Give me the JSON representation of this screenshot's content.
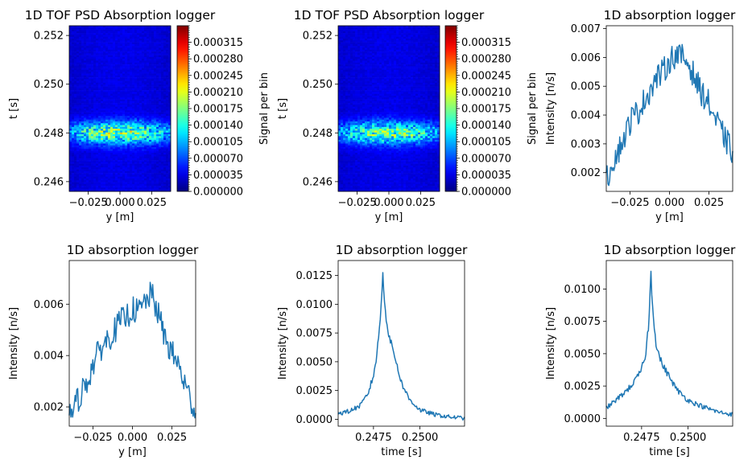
{
  "chart_data": [
    {
      "type": "heatmap",
      "title": "1D TOF PSD Absorption logger",
      "xlabel": "y [m]",
      "ylabel": "t [s]",
      "colorbar_label": "Signal per bin",
      "colormap": "jet",
      "xlim": [
        -0.04,
        0.04
      ],
      "ylim": [
        0.2456,
        0.2524
      ],
      "xticks": [
        -0.025,
        0.0,
        0.025
      ],
      "xtick_labels": [
        "−0.025",
        "0.000",
        "0.025"
      ],
      "yticks": [
        0.246,
        0.248,
        0.25,
        0.252
      ],
      "ytick_labels": [
        "0.246",
        "0.248",
        "0.250",
        "0.252"
      ],
      "colorbar_range": [
        0,
        0.00035
      ],
      "colorbar_ticks": [
        0,
        3.5e-05,
        7e-05,
        0.000105,
        0.00014,
        0.000175,
        0.00021,
        0.000245,
        0.00028,
        0.000315
      ],
      "colorbar_tick_labels": [
        "0.000000",
        "0.000035",
        "0.000070",
        "0.000105",
        "0.000140",
        "0.000175",
        "0.000210",
        "0.000245",
        "0.000280",
        "0.000315"
      ],
      "peak_t": 0.248,
      "peak_signal": 0.000175
    },
    {
      "type": "heatmap",
      "title": "1D TOF PSD Absorption logger",
      "xlabel": "y [m]",
      "ylabel": "t [s]",
      "colorbar_label": "Signal per bin",
      "colormap": "jet",
      "xlim": [
        -0.04,
        0.04
      ],
      "ylim": [
        0.2456,
        0.2524
      ],
      "xticks": [
        -0.025,
        0.0,
        0.025
      ],
      "xtick_labels": [
        "−0.025",
        "0.000",
        "0.025"
      ],
      "yticks": [
        0.246,
        0.248,
        0.25,
        0.252
      ],
      "ytick_labels": [
        "0.246",
        "0.248",
        "0.250",
        "0.252"
      ],
      "colorbar_range": [
        0,
        0.00035
      ],
      "colorbar_ticks": [
        0,
        3.5e-05,
        7e-05,
        0.000105,
        0.00014,
        0.000175,
        0.00021,
        0.000245,
        0.00028,
        0.000315
      ],
      "colorbar_tick_labels": [
        "0.000000",
        "0.000035",
        "0.000070",
        "0.000105",
        "0.000140",
        "0.000175",
        "0.000210",
        "0.000245",
        "0.000280",
        "0.000315"
      ],
      "peak_t": 0.248,
      "peak_signal": 0.000165
    },
    {
      "type": "line",
      "title": "1D absorption logger",
      "xlabel": "y [m]",
      "ylabel": "Intensity [n/s]",
      "xlim": [
        -0.04,
        0.04
      ],
      "ylim": [
        0.00135,
        0.0071
      ],
      "xticks": [
        -0.025,
        0.0,
        0.025
      ],
      "xtick_labels": [
        "−0.025",
        "0.000",
        "0.025"
      ],
      "yticks": [
        0.002,
        0.003,
        0.004,
        0.005,
        0.006,
        0.007
      ],
      "ytick_labels": [
        "0.002",
        "0.003",
        "0.004",
        "0.005",
        "0.006",
        "0.007"
      ],
      "color": "#1f77b4",
      "x": [
        -0.04,
        -0.036,
        -0.032,
        -0.028,
        -0.024,
        -0.02,
        -0.016,
        -0.012,
        -0.008,
        -0.004,
        0.0,
        0.004,
        0.008,
        0.012,
        0.016,
        0.02,
        0.024,
        0.028,
        0.032,
        0.036,
        0.04
      ],
      "y": [
        0.0017,
        0.0024,
        0.0028,
        0.0033,
        0.0039,
        0.0041,
        0.0045,
        0.0049,
        0.0053,
        0.0055,
        0.0059,
        0.0061,
        0.006,
        0.0058,
        0.0053,
        0.0048,
        0.0045,
        0.004,
        0.0035,
        0.0031,
        0.0027
      ]
    },
    {
      "type": "line",
      "title": "1D absorption logger",
      "xlabel": "y [m]",
      "ylabel": "Intensity [n/s]",
      "xlim": [
        -0.04,
        0.04
      ],
      "ylim": [
        0.00125,
        0.0077
      ],
      "xticks": [
        -0.025,
        0.0,
        0.025
      ],
      "xtick_labels": [
        "−0.025",
        "0.000",
        "0.025"
      ],
      "yticks": [
        0.002,
        0.004,
        0.006
      ],
      "ytick_labels": [
        "0.002",
        "0.004",
        "0.006"
      ],
      "color": "#1f77b4",
      "x": [
        -0.04,
        -0.036,
        -0.032,
        -0.028,
        -0.024,
        -0.02,
        -0.016,
        -0.012,
        -0.008,
        -0.004,
        0.0,
        0.004,
        0.008,
        0.012,
        0.016,
        0.02,
        0.024,
        0.028,
        0.032,
        0.036,
        0.04
      ],
      "y": [
        0.0016,
        0.0021,
        0.0026,
        0.0031,
        0.0038,
        0.0043,
        0.0046,
        0.0049,
        0.0053,
        0.0055,
        0.0058,
        0.0057,
        0.0061,
        0.0064,
        0.0057,
        0.0048,
        0.0042,
        0.0038,
        0.0031,
        0.0024,
        0.0018
      ]
    },
    {
      "type": "line",
      "title": "1D absorption logger",
      "xlabel": "time [s]",
      "ylabel": "Intensity [n/s]",
      "xlim": [
        0.2456,
        0.2524
      ],
      "ylim": [
        -0.0006,
        0.0138
      ],
      "xticks": [
        0.2475,
        0.25
      ],
      "xtick_labels": [
        "0.2475",
        "0.2500"
      ],
      "yticks": [
        0.0,
        0.0025,
        0.005,
        0.0075,
        0.01,
        0.0125
      ],
      "ytick_labels": [
        "0.0000",
        "0.0025",
        "0.0050",
        "0.0075",
        "0.0100",
        "0.0125"
      ],
      "color": "#1f77b4",
      "x": [
        0.2456,
        0.2462,
        0.2468,
        0.2472,
        0.2475,
        0.2477,
        0.2479,
        0.248,
        0.2481,
        0.2482,
        0.2484,
        0.2486,
        0.2488,
        0.249,
        0.2494,
        0.25,
        0.2508,
        0.2516,
        0.2524
      ],
      "y": [
        0.0005,
        0.0007,
        0.0012,
        0.0022,
        0.0038,
        0.0058,
        0.0095,
        0.0125,
        0.0105,
        0.0085,
        0.0068,
        0.0058,
        0.0045,
        0.0032,
        0.0018,
        0.0008,
        0.0004,
        0.0002,
        0.0001
      ]
    },
    {
      "type": "line",
      "title": "1D absorption logger",
      "xlabel": "time [s]",
      "ylabel": "Intensity [n/s]",
      "xlim": [
        0.2456,
        0.2524
      ],
      "ylim": [
        -0.0006,
        0.0122
      ],
      "xticks": [
        0.2475,
        0.25
      ],
      "xtick_labels": [
        "0.2475",
        "0.2500"
      ],
      "yticks": [
        0.0,
        0.0025,
        0.005,
        0.0075,
        0.01
      ],
      "ytick_labels": [
        "0.0000",
        "0.0025",
        "0.0050",
        "0.0075",
        "0.0100"
      ],
      "color": "#1f77b4",
      "x": [
        0.2456,
        0.2462,
        0.2468,
        0.2472,
        0.2475,
        0.2477,
        0.2479,
        0.248,
        0.2481,
        0.2483,
        0.2486,
        0.249,
        0.2494,
        0.25,
        0.2508,
        0.2516,
        0.2524
      ],
      "y": [
        0.0008,
        0.0015,
        0.0023,
        0.003,
        0.0038,
        0.0048,
        0.0075,
        0.0113,
        0.0085,
        0.0055,
        0.0042,
        0.0032,
        0.0022,
        0.0014,
        0.0009,
        0.0005,
        0.0003
      ]
    }
  ]
}
